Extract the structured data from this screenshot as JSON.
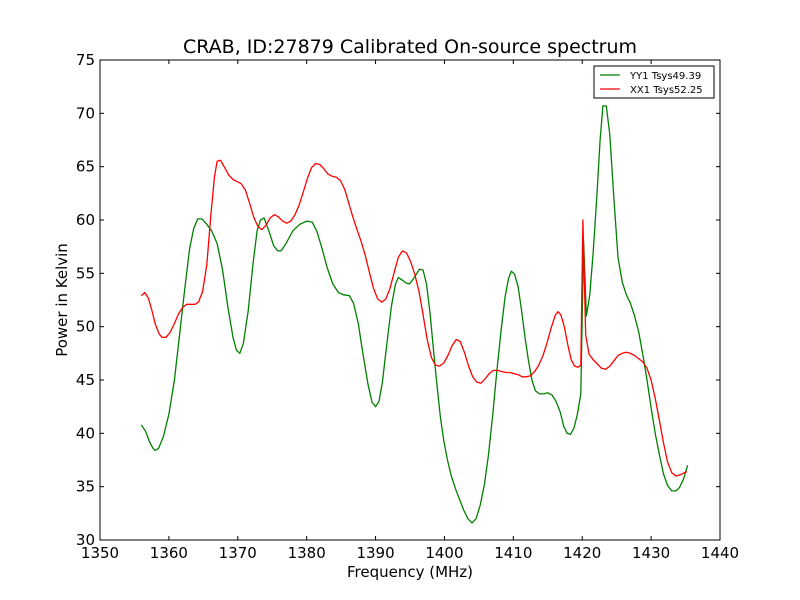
{
  "chart_data": {
    "type": "line",
    "title": "CRAB, ID:27879 Calibrated On-source spectrum",
    "xlabel": "Frequency (MHz)",
    "ylabel": "Power in Kelvin",
    "xlim": [
      1350,
      1440
    ],
    "ylim": [
      30,
      75
    ],
    "x_ticks": [
      "1350",
      "1360",
      "1370",
      "1380",
      "1390",
      "1400",
      "1410",
      "1420",
      "1430",
      "1440"
    ],
    "y_ticks": [
      "30",
      "35",
      "40",
      "45",
      "50",
      "55",
      "60",
      "65",
      "70",
      "75"
    ],
    "grid": false,
    "legend_position": "top-right",
    "series": [
      {
        "name": "YY1 Tsys49.39",
        "color": "#008000",
        "points": [
          [
            1356.0,
            40.8
          ],
          [
            1356.6,
            40.2
          ],
          [
            1357.2,
            39.2
          ],
          [
            1357.7,
            38.6
          ],
          [
            1358.0,
            38.4
          ],
          [
            1358.5,
            38.6
          ],
          [
            1359.2,
            39.7
          ],
          [
            1360.0,
            41.8
          ],
          [
            1360.8,
            45.0
          ],
          [
            1361.6,
            49.5
          ],
          [
            1362.3,
            53.5
          ],
          [
            1363.0,
            57.3
          ],
          [
            1363.6,
            59.2
          ],
          [
            1364.2,
            60.1
          ],
          [
            1364.8,
            60.1
          ],
          [
            1365.5,
            59.6
          ],
          [
            1366.2,
            59.0
          ],
          [
            1367.0,
            57.8
          ],
          [
            1367.8,
            55.3
          ],
          [
            1368.6,
            51.7
          ],
          [
            1369.3,
            49.0
          ],
          [
            1369.8,
            47.8
          ],
          [
            1370.3,
            47.5
          ],
          [
            1370.8,
            48.4
          ],
          [
            1371.5,
            51.4
          ],
          [
            1372.2,
            55.8
          ],
          [
            1372.8,
            59.0
          ],
          [
            1373.3,
            60.0
          ],
          [
            1373.8,
            60.2
          ],
          [
            1374.5,
            59.0
          ],
          [
            1375.2,
            57.6
          ],
          [
            1375.8,
            57.1
          ],
          [
            1376.3,
            57.1
          ],
          [
            1377.0,
            57.8
          ],
          [
            1378.0,
            59.0
          ],
          [
            1379.0,
            59.6
          ],
          [
            1380.0,
            59.9
          ],
          [
            1380.8,
            59.8
          ],
          [
            1381.5,
            58.9
          ],
          [
            1382.2,
            57.4
          ],
          [
            1383.0,
            55.5
          ],
          [
            1383.8,
            54.0
          ],
          [
            1384.6,
            53.2
          ],
          [
            1385.3,
            53.0
          ],
          [
            1386.2,
            52.9
          ],
          [
            1386.8,
            52.2
          ],
          [
            1387.5,
            50.3
          ],
          [
            1388.2,
            47.3
          ],
          [
            1388.9,
            44.6
          ],
          [
            1389.5,
            42.9
          ],
          [
            1390.0,
            42.5
          ],
          [
            1390.5,
            43.0
          ],
          [
            1391.0,
            44.8
          ],
          [
            1391.6,
            48.2
          ],
          [
            1392.3,
            51.9
          ],
          [
            1392.9,
            54.0
          ],
          [
            1393.3,
            54.6
          ],
          [
            1393.8,
            54.4
          ],
          [
            1394.4,
            54.1
          ],
          [
            1394.9,
            54.0
          ],
          [
            1395.4,
            54.4
          ],
          [
            1396.0,
            55.0
          ],
          [
            1396.4,
            55.4
          ],
          [
            1396.9,
            55.3
          ],
          [
            1397.4,
            54.0
          ],
          [
            1397.9,
            51.3
          ],
          [
            1398.4,
            47.9
          ],
          [
            1398.9,
            44.6
          ],
          [
            1399.4,
            41.6
          ],
          [
            1399.9,
            39.3
          ],
          [
            1400.4,
            37.6
          ],
          [
            1401.0,
            36.0
          ],
          [
            1401.6,
            34.8
          ],
          [
            1402.2,
            33.8
          ],
          [
            1402.8,
            32.8
          ],
          [
            1403.4,
            32.0
          ],
          [
            1404.0,
            31.6
          ],
          [
            1404.6,
            32.0
          ],
          [
            1405.2,
            33.3
          ],
          [
            1405.8,
            35.2
          ],
          [
            1406.4,
            38.0
          ],
          [
            1407.0,
            41.7
          ],
          [
            1407.6,
            45.8
          ],
          [
            1408.2,
            49.5
          ],
          [
            1408.8,
            52.8
          ],
          [
            1409.3,
            54.5
          ],
          [
            1409.7,
            55.2
          ],
          [
            1410.2,
            54.9
          ],
          [
            1410.7,
            53.7
          ],
          [
            1411.2,
            51.5
          ],
          [
            1411.7,
            49.0
          ],
          [
            1412.2,
            46.8
          ],
          [
            1412.7,
            45.0
          ],
          [
            1413.2,
            44.0
          ],
          [
            1413.8,
            43.7
          ],
          [
            1414.4,
            43.7
          ],
          [
            1415.0,
            43.8
          ],
          [
            1415.6,
            43.6
          ],
          [
            1416.2,
            43.0
          ],
          [
            1416.8,
            42.0
          ],
          [
            1417.3,
            40.7
          ],
          [
            1417.8,
            40.0
          ],
          [
            1418.3,
            39.9
          ],
          [
            1418.8,
            40.5
          ],
          [
            1419.3,
            41.8
          ],
          [
            1419.8,
            43.7
          ],
          [
            1420.2,
            58.0
          ],
          [
            1420.6,
            51.0
          ],
          [
            1421.1,
            53.0
          ],
          [
            1421.6,
            57.0
          ],
          [
            1422.1,
            62.0
          ],
          [
            1422.6,
            67.5
          ],
          [
            1423.0,
            70.7
          ],
          [
            1423.5,
            70.7
          ],
          [
            1424.0,
            68.0
          ],
          [
            1424.6,
            62.0
          ],
          [
            1425.2,
            56.5
          ],
          [
            1425.8,
            54.2
          ],
          [
            1426.4,
            53.0
          ],
          [
            1427.0,
            52.2
          ],
          [
            1427.6,
            51.0
          ],
          [
            1428.2,
            49.5
          ],
          [
            1428.8,
            47.4
          ],
          [
            1429.4,
            45.0
          ],
          [
            1430.0,
            42.4
          ],
          [
            1430.6,
            40.0
          ],
          [
            1431.2,
            38.0
          ],
          [
            1431.8,
            36.2
          ],
          [
            1432.4,
            35.1
          ],
          [
            1433.0,
            34.6
          ],
          [
            1433.6,
            34.6
          ],
          [
            1434.1,
            34.9
          ],
          [
            1434.7,
            35.7
          ],
          [
            1435.3,
            37.0
          ]
        ]
      },
      {
        "name": "XX1 Tsys52.25",
        "color": "#ff0000",
        "points": [
          [
            1356.0,
            52.9
          ],
          [
            1356.5,
            53.2
          ],
          [
            1357.0,
            52.7
          ],
          [
            1357.5,
            51.6
          ],
          [
            1358.0,
            50.3
          ],
          [
            1358.6,
            49.3
          ],
          [
            1359.0,
            49.0
          ],
          [
            1359.6,
            49.0
          ],
          [
            1360.2,
            49.5
          ],
          [
            1360.8,
            50.3
          ],
          [
            1361.4,
            51.2
          ],
          [
            1362.0,
            51.8
          ],
          [
            1362.6,
            52.1
          ],
          [
            1363.2,
            52.1
          ],
          [
            1363.8,
            52.1
          ],
          [
            1364.3,
            52.3
          ],
          [
            1364.9,
            53.3
          ],
          [
            1365.5,
            55.8
          ],
          [
            1366.1,
            60.5
          ],
          [
            1366.6,
            64.0
          ],
          [
            1367.0,
            65.5
          ],
          [
            1367.5,
            65.6
          ],
          [
            1368.1,
            64.9
          ],
          [
            1368.7,
            64.2
          ],
          [
            1369.3,
            63.8
          ],
          [
            1369.9,
            63.6
          ],
          [
            1370.5,
            63.4
          ],
          [
            1371.1,
            62.8
          ],
          [
            1371.7,
            61.6
          ],
          [
            1372.3,
            60.3
          ],
          [
            1372.9,
            59.4
          ],
          [
            1373.5,
            59.1
          ],
          [
            1374.1,
            59.5
          ],
          [
            1374.7,
            60.2
          ],
          [
            1375.3,
            60.5
          ],
          [
            1375.9,
            60.3
          ],
          [
            1376.5,
            59.9
          ],
          [
            1377.1,
            59.7
          ],
          [
            1377.7,
            59.9
          ],
          [
            1378.3,
            60.5
          ],
          [
            1378.9,
            61.4
          ],
          [
            1379.5,
            62.6
          ],
          [
            1380.1,
            63.9
          ],
          [
            1380.7,
            64.9
          ],
          [
            1381.3,
            65.3
          ],
          [
            1381.9,
            65.2
          ],
          [
            1382.5,
            64.8
          ],
          [
            1383.1,
            64.3
          ],
          [
            1383.7,
            64.1
          ],
          [
            1384.3,
            64.0
          ],
          [
            1384.9,
            63.7
          ],
          [
            1385.5,
            62.9
          ],
          [
            1386.1,
            61.6
          ],
          [
            1386.7,
            60.3
          ],
          [
            1387.3,
            59.1
          ],
          [
            1387.9,
            58.0
          ],
          [
            1388.5,
            56.7
          ],
          [
            1389.1,
            55.1
          ],
          [
            1389.7,
            53.6
          ],
          [
            1390.3,
            52.6
          ],
          [
            1390.9,
            52.3
          ],
          [
            1391.5,
            52.6
          ],
          [
            1392.1,
            53.6
          ],
          [
            1392.7,
            55.1
          ],
          [
            1393.3,
            56.5
          ],
          [
            1393.9,
            57.1
          ],
          [
            1394.5,
            56.9
          ],
          [
            1395.1,
            56.1
          ],
          [
            1395.7,
            54.9
          ],
          [
            1396.3,
            53.3
          ],
          [
            1396.9,
            51.1
          ],
          [
            1397.5,
            48.8
          ],
          [
            1398.1,
            47.1
          ],
          [
            1398.7,
            46.4
          ],
          [
            1399.3,
            46.3
          ],
          [
            1399.9,
            46.6
          ],
          [
            1400.5,
            47.3
          ],
          [
            1401.1,
            48.2
          ],
          [
            1401.7,
            48.8
          ],
          [
            1402.3,
            48.6
          ],
          [
            1402.9,
            47.6
          ],
          [
            1403.5,
            46.3
          ],
          [
            1404.1,
            45.3
          ],
          [
            1404.7,
            44.8
          ],
          [
            1405.3,
            44.7
          ],
          [
            1405.9,
            45.1
          ],
          [
            1406.5,
            45.6
          ],
          [
            1407.1,
            45.9
          ],
          [
            1407.7,
            45.9
          ],
          [
            1408.3,
            45.8
          ],
          [
            1408.9,
            45.7
          ],
          [
            1409.5,
            45.7
          ],
          [
            1410.1,
            45.6
          ],
          [
            1410.7,
            45.5
          ],
          [
            1411.3,
            45.3
          ],
          [
            1411.9,
            45.3
          ],
          [
            1412.5,
            45.4
          ],
          [
            1413.1,
            45.8
          ],
          [
            1413.7,
            46.4
          ],
          [
            1414.3,
            47.3
          ],
          [
            1414.9,
            48.5
          ],
          [
            1415.5,
            49.9
          ],
          [
            1416.1,
            51.1
          ],
          [
            1416.5,
            51.4
          ],
          [
            1416.9,
            51.1
          ],
          [
            1417.4,
            50.0
          ],
          [
            1417.9,
            48.3
          ],
          [
            1418.4,
            46.9
          ],
          [
            1418.9,
            46.3
          ],
          [
            1419.4,
            46.2
          ],
          [
            1419.8,
            46.4
          ],
          [
            1420.1,
            60.0
          ],
          [
            1420.5,
            49.2
          ],
          [
            1421.0,
            47.4
          ],
          [
            1421.6,
            46.9
          ],
          [
            1422.2,
            46.5
          ],
          [
            1422.8,
            46.1
          ],
          [
            1423.4,
            46.0
          ],
          [
            1424.0,
            46.3
          ],
          [
            1424.6,
            46.8
          ],
          [
            1425.2,
            47.3
          ],
          [
            1425.8,
            47.5
          ],
          [
            1426.4,
            47.6
          ],
          [
            1427.0,
            47.5
          ],
          [
            1427.6,
            47.3
          ],
          [
            1428.2,
            47.0
          ],
          [
            1428.8,
            46.7
          ],
          [
            1429.4,
            46.1
          ],
          [
            1430.0,
            45.0
          ],
          [
            1430.6,
            43.3
          ],
          [
            1431.2,
            41.2
          ],
          [
            1431.8,
            39.1
          ],
          [
            1432.4,
            37.3
          ],
          [
            1433.0,
            36.3
          ],
          [
            1433.6,
            36.0
          ],
          [
            1434.2,
            36.1
          ],
          [
            1434.8,
            36.3
          ],
          [
            1435.2,
            36.4
          ]
        ]
      }
    ]
  }
}
